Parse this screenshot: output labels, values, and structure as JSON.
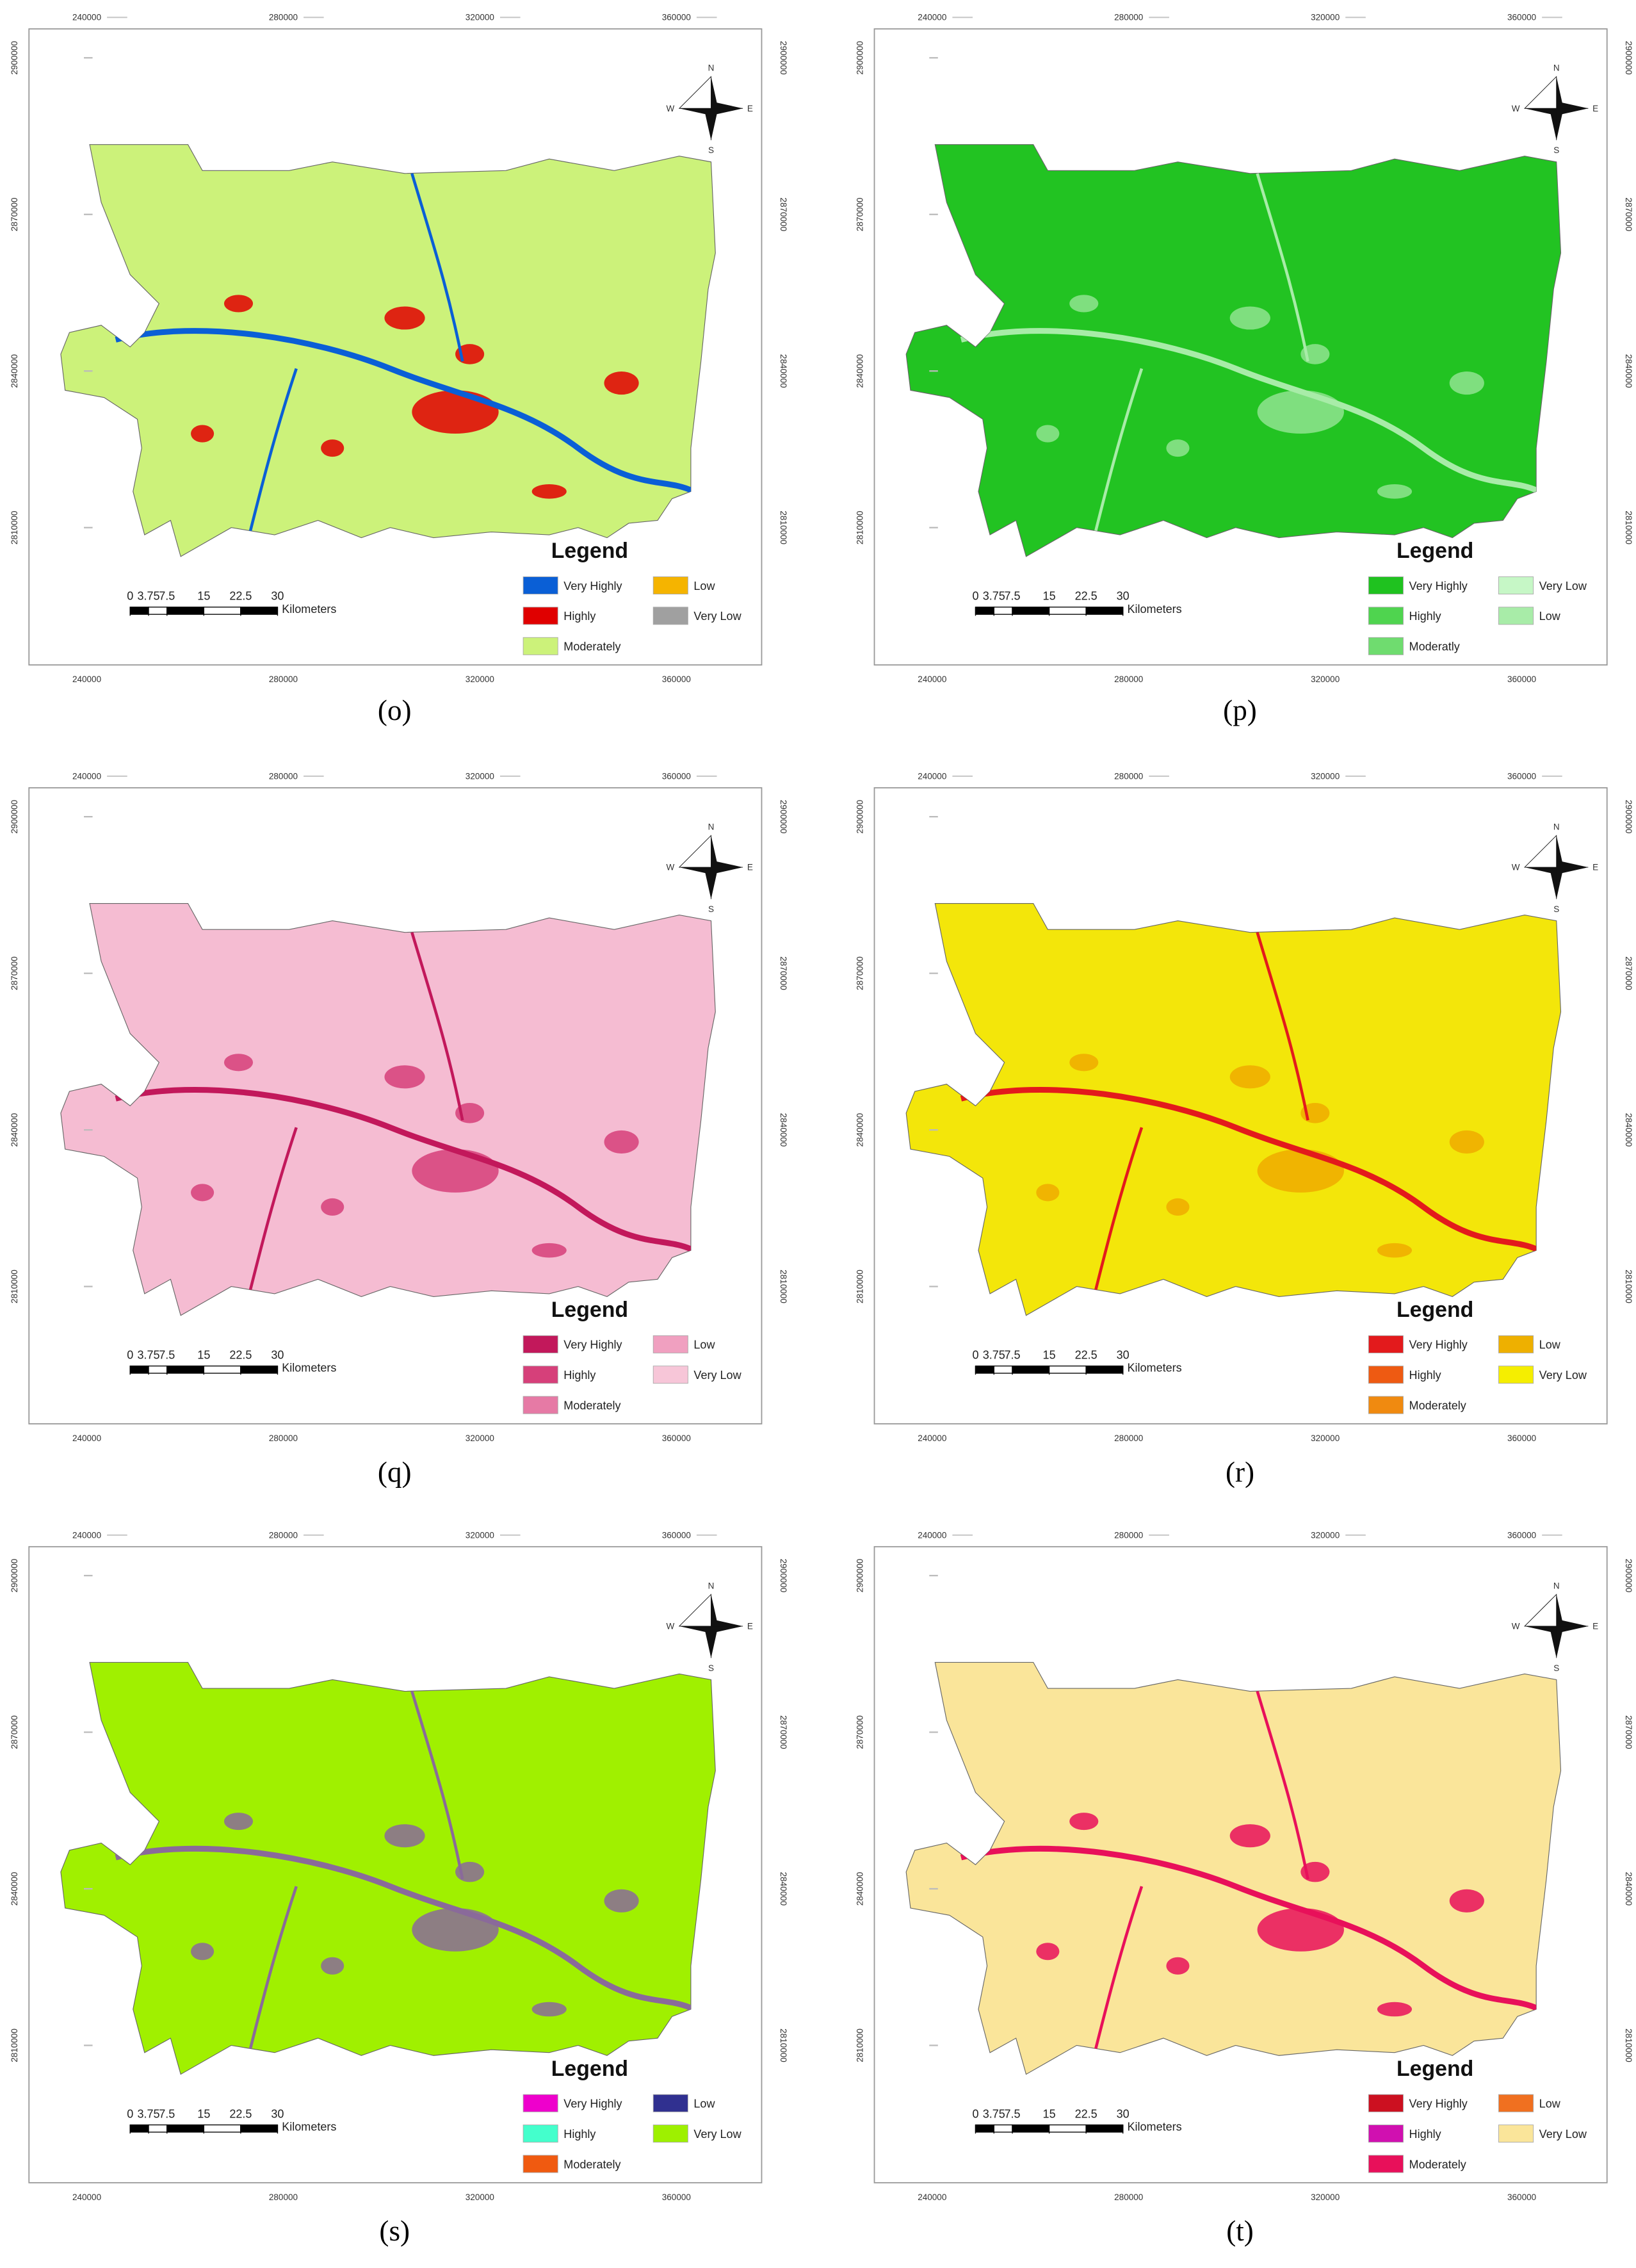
{
  "panels": [
    {
      "label": "(o)",
      "fill": "#ccf27a",
      "accent": "#e00000",
      "river": "#0a5fd6",
      "legend_title": "Legend",
      "legend": [
        {
          "name": "Very Highly",
          "color": "#0a5fd6"
        },
        {
          "name": "Highly",
          "color": "#e00000"
        },
        {
          "name": "Moderately",
          "color": "#ccf27a"
        },
        {
          "name": "Low",
          "color": "#f5b400"
        },
        {
          "name": "Very Low",
          "color": "#a0a0a0"
        }
      ]
    },
    {
      "label": "(p)",
      "fill": "#22c322",
      "accent": "#8fe48f",
      "river": "#a8eca8",
      "legend_title": "Legend",
      "legend": [
        {
          "name": "Very Highly",
          "color": "#1fc21f"
        },
        {
          "name": "Highly",
          "color": "#4fd44f"
        },
        {
          "name": "Moderatly",
          "color": "#6fdc6f"
        },
        {
          "name": "Very Low",
          "color": "#c6f7c6"
        },
        {
          "name": "Low",
          "color": "#a8eca8"
        }
      ]
    },
    {
      "label": "(q)",
      "fill": "#f5bcd2",
      "accent": "#d6407a",
      "river": "#c2185b",
      "legend_title": "Legend",
      "legend": [
        {
          "name": "Very Highly",
          "color": "#c2185b"
        },
        {
          "name": "Highly",
          "color": "#d6407a"
        },
        {
          "name": "Moderately",
          "color": "#e67aa5"
        },
        {
          "name": "Low",
          "color": "#f0a0c0"
        },
        {
          "name": "Very Low",
          "color": "#f7c6d8"
        }
      ]
    },
    {
      "label": "(r)",
      "fill": "#f3e60a",
      "accent": "#eeaa00",
      "river": "#e31a1c",
      "legend_title": "Legend",
      "legend": [
        {
          "name": "Very Highly",
          "color": "#e31a1c"
        },
        {
          "name": "Highly",
          "color": "#ee5a12"
        },
        {
          "name": "Moderately",
          "color": "#f08a10"
        },
        {
          "name": "Low",
          "color": "#eeb000"
        },
        {
          "name": "Very Low",
          "color": "#f5ee00"
        }
      ]
    },
    {
      "label": "(s)",
      "fill": "#a0f000",
      "accent": "#8a6a9a",
      "river": "#8a6a9a",
      "legend_title": "Legend",
      "legend": [
        {
          "name": "Very Highly",
          "color": "#ee00cc"
        },
        {
          "name": "Highly",
          "color": "#44ffcc"
        },
        {
          "name": "Moderately",
          "color": "#f05a10"
        },
        {
          "name": "Low",
          "color": "#303090"
        },
        {
          "name": "Very Low",
          "color": "#9ef000"
        }
      ]
    },
    {
      "label": "(t)",
      "fill": "#fae59a",
      "accent": "#e8105a",
      "river": "#e8105a",
      "legend_title": "Legend",
      "legend": [
        {
          "name": "Very Highly",
          "color": "#cc1020"
        },
        {
          "name": "Highly",
          "color": "#d010b0"
        },
        {
          "name": "Moderately",
          "color": "#e8105a"
        },
        {
          "name": "Low",
          "color": "#f07020"
        },
        {
          "name": "Very Low",
          "color": "#fae59a"
        }
      ]
    }
  ],
  "x_ticks": [
    240000,
    280000,
    320000,
    360000
  ],
  "y_ticks": [
    2900000,
    2870000,
    2840000,
    2810000
  ],
  "scale_bar": {
    "ticks": [
      0,
      3.75,
      7.5,
      15,
      22.5,
      30
    ],
    "unit": "Kilometers"
  },
  "compass": {
    "n": "N",
    "e": "E",
    "s": "S",
    "w": "W"
  }
}
